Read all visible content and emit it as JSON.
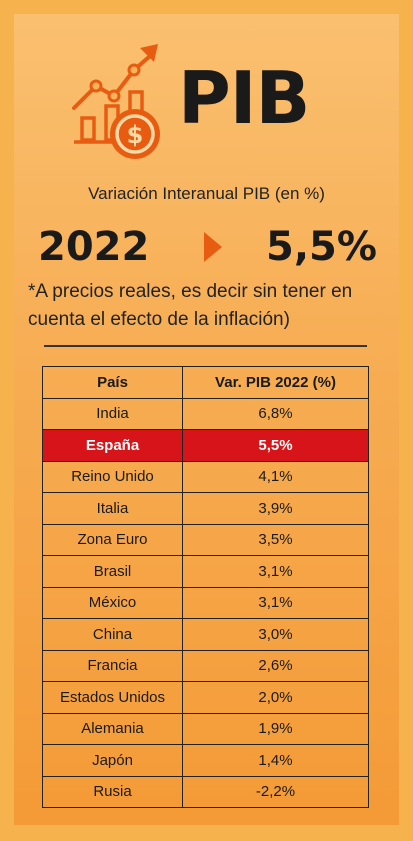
{
  "header": {
    "title": "PIB",
    "subtitle": "Variación Interanual PIB (en %)",
    "year": "2022",
    "value": "5,5%",
    "note": "*A precios reales, es decir sin tener en cuenta el efecto de la inflación)"
  },
  "colors": {
    "accent": "#e85c12",
    "highlight": "#d7141a",
    "background": "#f5b24d"
  },
  "icons": [
    "growth-chart-icon",
    "dollar-coin-icon",
    "arrow-right-icon"
  ],
  "table": {
    "headers": [
      "País",
      "Var. PIB 2022 (%)"
    ],
    "rows": [
      {
        "country": "India",
        "value": "6,8%"
      },
      {
        "country": "España",
        "value": "5,5%",
        "highlight": true
      },
      {
        "country": "Reino Unido",
        "value": "4,1%"
      },
      {
        "country": "Italia",
        "value": "3,9%"
      },
      {
        "country": "Zona Euro",
        "value": "3,5%"
      },
      {
        "country": "Brasil",
        "value": "3,1%"
      },
      {
        "country": "México",
        "value": "3,1%"
      },
      {
        "country": "China",
        "value": "3,0%"
      },
      {
        "country": "Francia",
        "value": "2,6%"
      },
      {
        "country": "Estados Unidos",
        "value": "2,0%"
      },
      {
        "country": "Alemania",
        "value": "1,9%"
      },
      {
        "country": "Japón",
        "value": "1,4%"
      },
      {
        "country": "Rusia",
        "value": "-2,2%"
      }
    ]
  }
}
